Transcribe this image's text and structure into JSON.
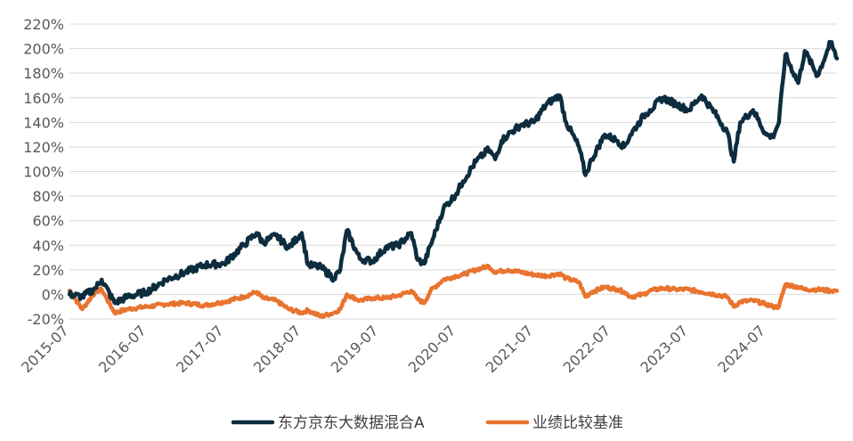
{
  "chart_data": {
    "type": "line",
    "title": "",
    "xlabel": "",
    "ylabel": "",
    "ylim": [
      -20,
      220
    ],
    "y_ticks": [
      "220%",
      "200%",
      "180%",
      "160%",
      "140%",
      "120%",
      "100%",
      "80%",
      "60%",
      "40%",
      "20%",
      "0%",
      "-20%"
    ],
    "y_tick_values": [
      220,
      200,
      180,
      160,
      140,
      120,
      100,
      80,
      60,
      40,
      20,
      0,
      -20
    ],
    "x_range": [
      "2015-07",
      "2025-06"
    ],
    "x_ticks": [
      "2015-07",
      "2016-07",
      "2017-07",
      "2018-07",
      "2019-07",
      "2020-07",
      "2021-07",
      "2022-07",
      "2023-07",
      "2024-07"
    ],
    "grid": "horizontal",
    "legend": "bottom-center",
    "series": [
      {
        "name": "东方京东大数据混合A",
        "color": "#0d2d3f",
        "x": [
          "2015-07",
          "2015-09",
          "2015-11",
          "2015-12",
          "2016-02",
          "2016-04",
          "2016-07",
          "2016-10",
          "2017-01",
          "2017-04",
          "2017-07",
          "2017-10",
          "2017-12",
          "2018-01",
          "2018-03",
          "2018-05",
          "2018-07",
          "2018-08",
          "2018-10",
          "2018-12",
          "2019-01",
          "2019-02",
          "2019-04",
          "2019-06",
          "2019-08",
          "2019-10",
          "2019-12",
          "2020-01",
          "2020-02",
          "2020-03",
          "2020-05",
          "2020-07",
          "2020-08",
          "2020-10",
          "2020-12",
          "2021-01",
          "2021-02",
          "2021-03",
          "2021-05",
          "2021-07",
          "2021-09",
          "2021-11",
          "2021-12",
          "2022-02",
          "2022-03",
          "2022-04",
          "2022-06",
          "2022-08",
          "2022-09",
          "2022-10",
          "2022-12",
          "2023-01",
          "2023-03",
          "2023-05",
          "2023-07",
          "2023-09",
          "2023-11",
          "2024-01",
          "2024-02",
          "2024-03",
          "2024-05",
          "2024-07",
          "2024-08",
          "2024-09",
          "2024-10",
          "2024-12",
          "2025-01",
          "2025-03",
          "2025-05",
          "2025-06"
        ],
        "values": [
          0,
          -2,
          5,
          12,
          -7,
          -2,
          2,
          12,
          18,
          24,
          25,
          40,
          50,
          42,
          48,
          38,
          50,
          24,
          22,
          13,
          20,
          52,
          29,
          27,
          38,
          40,
          50,
          28,
          25,
          40,
          70,
          82,
          92,
          108,
          118,
          110,
          125,
          130,
          138,
          140,
          155,
          162,
          140,
          120,
          97,
          110,
          130,
          125,
          120,
          130,
          145,
          150,
          160,
          155,
          150,
          162,
          148,
          132,
          108,
          140,
          150,
          130,
          128,
          140,
          195,
          172,
          198,
          178,
          205,
          192
        ]
      },
      {
        "name": "业绩比较基准",
        "color": "#e8742f",
        "x": [
          "2015-07",
          "2015-09",
          "2015-11",
          "2015-12",
          "2016-02",
          "2016-04",
          "2016-07",
          "2016-10",
          "2017-01",
          "2017-04",
          "2017-07",
          "2017-10",
          "2017-12",
          "2018-01",
          "2018-03",
          "2018-05",
          "2018-07",
          "2018-08",
          "2018-10",
          "2018-12",
          "2019-01",
          "2019-02",
          "2019-04",
          "2019-06",
          "2019-08",
          "2019-10",
          "2019-12",
          "2020-01",
          "2020-02",
          "2020-03",
          "2020-05",
          "2020-07",
          "2020-08",
          "2020-10",
          "2020-12",
          "2021-01",
          "2021-02",
          "2021-03",
          "2021-05",
          "2021-07",
          "2021-09",
          "2021-11",
          "2021-12",
          "2022-02",
          "2022-03",
          "2022-04",
          "2022-06",
          "2022-08",
          "2022-09",
          "2022-10",
          "2022-12",
          "2023-01",
          "2023-03",
          "2023-05",
          "2023-07",
          "2023-09",
          "2023-11",
          "2024-01",
          "2024-02",
          "2024-03",
          "2024-05",
          "2024-07",
          "2024-08",
          "2024-09",
          "2024-10",
          "2024-12",
          "2025-01",
          "2025-03",
          "2025-05",
          "2025-06"
        ],
        "values": [
          3,
          -12,
          2,
          4,
          -15,
          -12,
          -10,
          -8,
          -7,
          -9,
          -6,
          -2,
          2,
          -3,
          -5,
          -12,
          -15,
          -13,
          -18,
          -15,
          -12,
          0,
          -5,
          -3,
          -3,
          -1,
          3,
          -4,
          -7,
          3,
          12,
          15,
          16,
          20,
          23,
          18,
          19,
          20,
          18,
          16,
          15,
          17,
          13,
          10,
          -2,
          2,
          6,
          4,
          2,
          -2,
          0,
          3,
          5,
          4,
          4,
          2,
          0,
          -2,
          -10,
          -6,
          -5,
          -8,
          -10,
          -10,
          8,
          6,
          4,
          4,
          3,
          3
        ]
      }
    ]
  }
}
